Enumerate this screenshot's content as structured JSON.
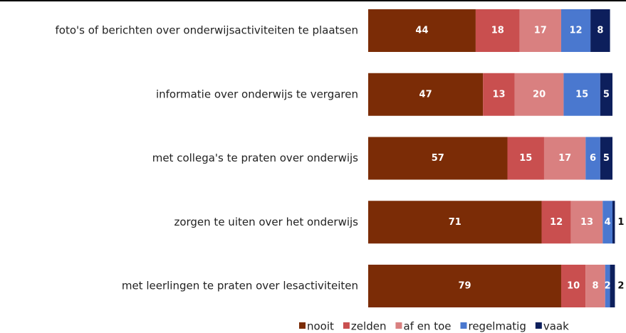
{
  "chart_data": {
    "type": "stacked-bar-horizontal",
    "categories": [
      "foto's of berichten over onderwijsactiviteiten te plaatsen",
      "informatie over onderwijs te vergaren",
      "met collega's te praten over onderwijs",
      "zorgen te uiten over het onderwijs",
      "met leerlingen te praten over lesactiviteiten"
    ],
    "series": [
      {
        "name": "nooit",
        "color": "#7b2c06",
        "values": [
          44,
          47,
          57,
          71,
          79
        ]
      },
      {
        "name": "zelden",
        "color": "#c94f4f",
        "values": [
          18,
          13,
          15,
          12,
          10
        ]
      },
      {
        "name": "af en toe",
        "color": "#d98080",
        "values": [
          17,
          20,
          17,
          13,
          8
        ]
      },
      {
        "name": "regelmatig",
        "color": "#4a78cf",
        "values": [
          12,
          15,
          6,
          4,
          2
        ]
      },
      {
        "name": "vaak",
        "color": "#0d1f5c",
        "values": [
          8,
          5,
          5,
          1,
          2
        ]
      }
    ],
    "xlim": [
      0,
      100
    ]
  }
}
